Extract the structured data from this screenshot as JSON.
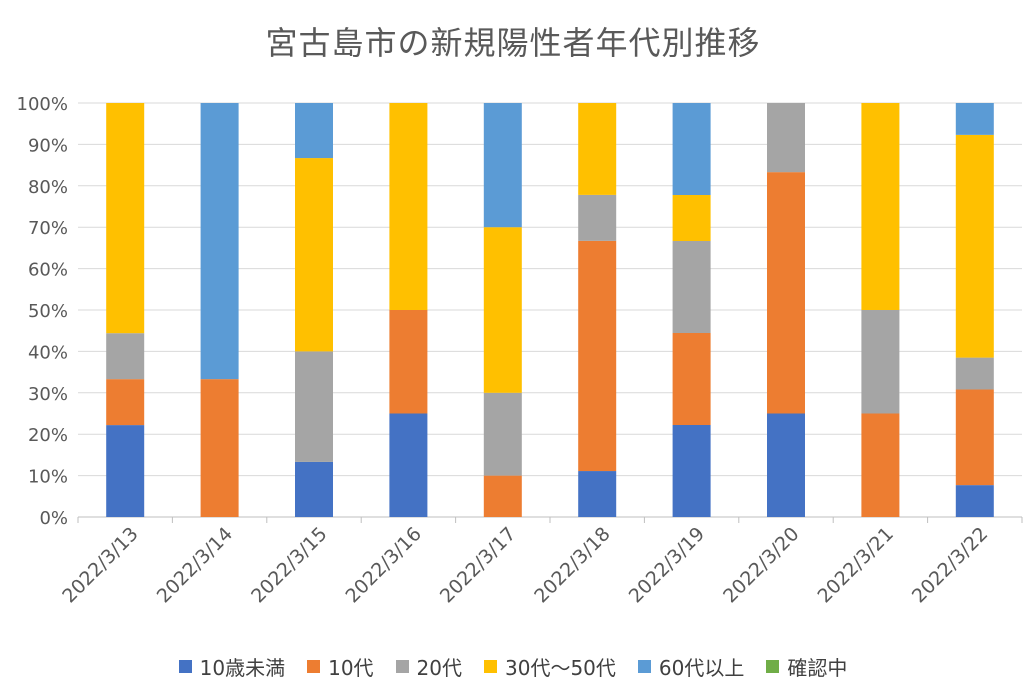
{
  "chart_data": {
    "type": "bar",
    "stacked": "percent",
    "title": "宮古島市の新規陽性者年代別推移",
    "xlabel": "",
    "ylabel": "",
    "ylim": [
      0,
      100
    ],
    "y_ticks": [
      "0%",
      "10%",
      "20%",
      "30%",
      "40%",
      "50%",
      "60%",
      "70%",
      "80%",
      "90%",
      "100%"
    ],
    "categories": [
      "2022/3/13",
      "2022/3/14",
      "2022/3/15",
      "2022/3/16",
      "2022/3/17",
      "2022/3/18",
      "2022/3/19",
      "2022/3/20",
      "2022/3/21",
      "2022/3/22"
    ],
    "series": [
      {
        "name": "10歳未満",
        "color": "#4472C4",
        "values": [
          22.2,
          0,
          13.3,
          25,
          0,
          11.1,
          22.2,
          25,
          0,
          7.7
        ]
      },
      {
        "name": "10代",
        "color": "#ED7D31",
        "values": [
          11.1,
          33.3,
          0,
          25,
          10,
          55.6,
          22.2,
          58.3,
          25,
          23.1
        ]
      },
      {
        "name": "20代",
        "color": "#A5A5A5",
        "values": [
          11.1,
          0,
          26.7,
          0,
          20,
          11.1,
          22.2,
          16.7,
          25,
          7.7
        ]
      },
      {
        "name": "30代～50代",
        "color": "#FFC000",
        "values": [
          55.6,
          0,
          46.7,
          50,
          40,
          22.2,
          11.1,
          0,
          50,
          53.8
        ]
      },
      {
        "name": "60代以上",
        "color": "#5B9BD5",
        "values": [
          0,
          66.7,
          13.3,
          0,
          30,
          0,
          22.2,
          0,
          0,
          7.7
        ]
      },
      {
        "name": "確認中",
        "color": "#70AD47",
        "values": [
          0,
          0,
          0,
          0,
          0,
          0,
          0,
          0,
          0,
          0
        ]
      }
    ],
    "legend_position": "bottom"
  }
}
